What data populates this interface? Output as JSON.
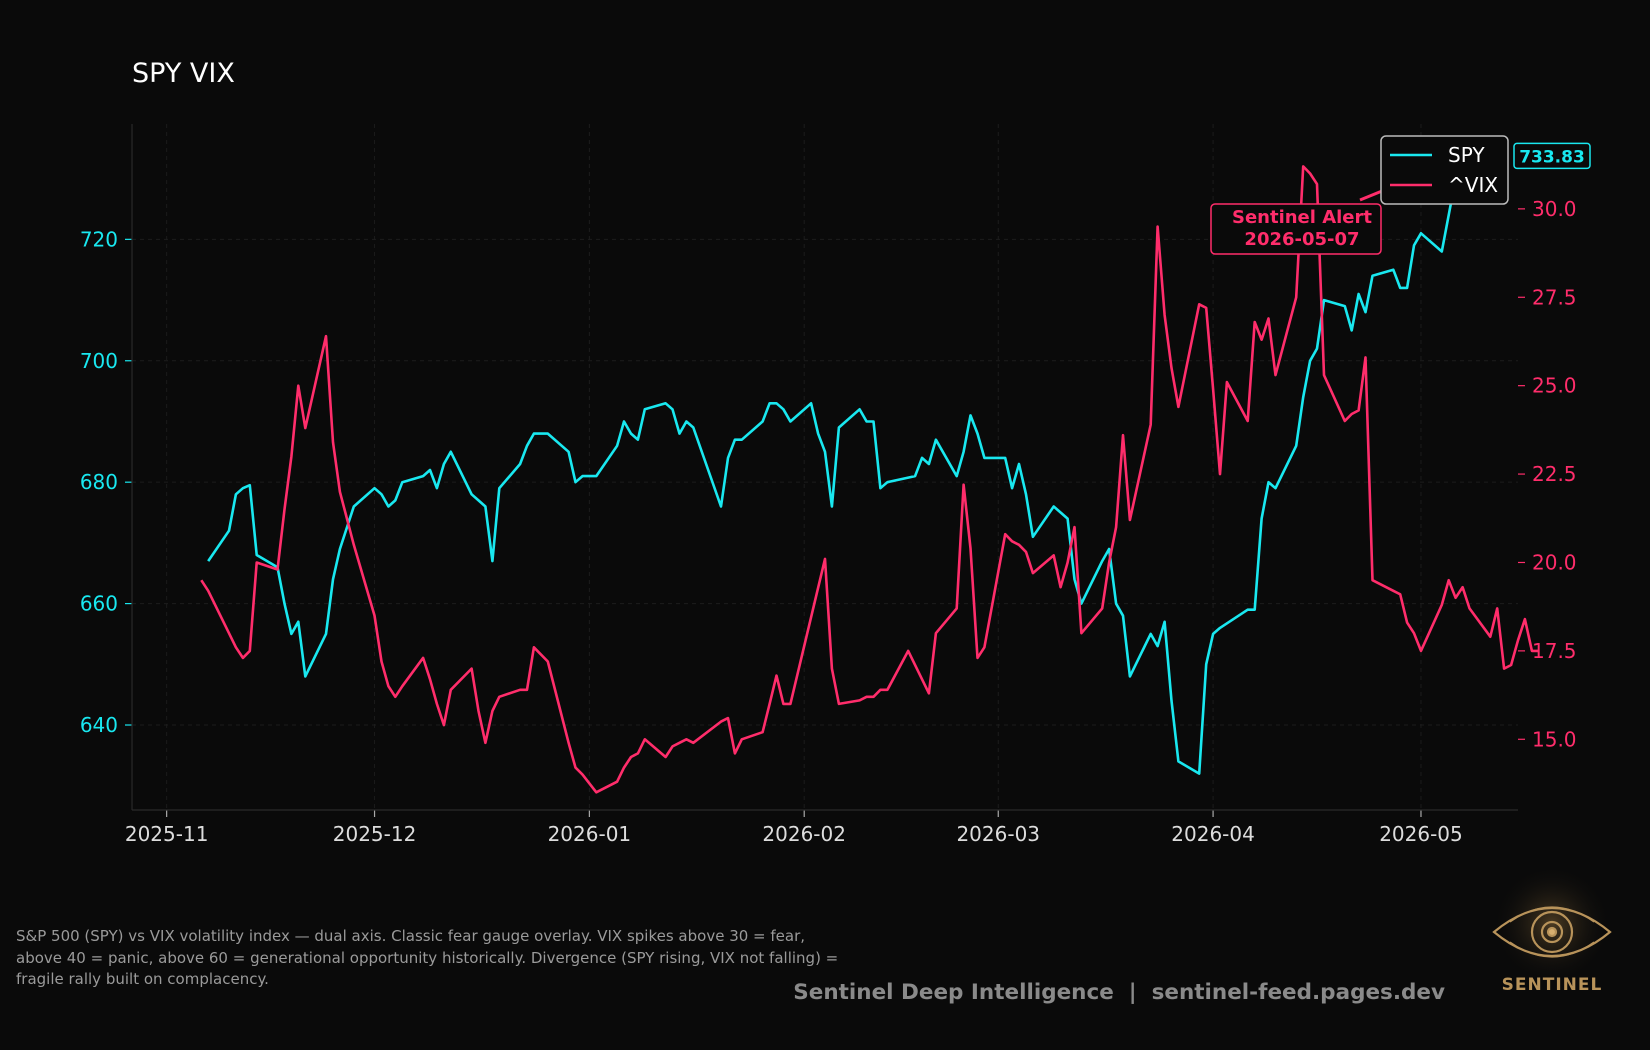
{
  "chart_data": {
    "type": "line",
    "title": "SPY VIX",
    "x_ticks": [
      "2025-11",
      "2025-12",
      "2026-01",
      "2026-02",
      "2026-03",
      "2026-04",
      "2026-05"
    ],
    "y_left": {
      "ticks": [
        640,
        660,
        680,
        700,
        720
      ],
      "range": [
        626,
        739
      ],
      "color": "#19e8f0"
    },
    "y_right": {
      "ticks": [
        "15.0",
        "17.5",
        "20.0",
        "22.5",
        "25.0",
        "27.5",
        "30.0"
      ],
      "range": [
        13.0,
        32.4
      ],
      "color": "#ff2d6b"
    },
    "x_range": [
      "2025-10-27",
      "2026-05-15"
    ],
    "grid": true,
    "legend": {
      "position": "top-right",
      "entries": [
        "SPY",
        "^VIX"
      ]
    },
    "last_value_label": "733.83",
    "annotation": {
      "line1": "Sentinel Alert",
      "line2": "2026-05-07",
      "color": "#ff2d6b"
    },
    "series": [
      {
        "name": "SPY",
        "axis": "left",
        "color": "#19e8f0",
        "points": [
          [
            "2025-11-07",
            667
          ],
          [
            "2025-11-10",
            672
          ],
          [
            "2025-11-11",
            678
          ],
          [
            "2025-11-12",
            679
          ],
          [
            "2025-11-13",
            679.5
          ],
          [
            "2025-11-14",
            668
          ],
          [
            "2025-11-17",
            666
          ],
          [
            "2025-11-18",
            660
          ],
          [
            "2025-11-19",
            655
          ],
          [
            "2025-11-20",
            657
          ],
          [
            "2025-11-21",
            648
          ],
          [
            "2025-11-24",
            655
          ],
          [
            "2025-11-25",
            664
          ],
          [
            "2025-11-26",
            669
          ],
          [
            "2025-11-28",
            676
          ],
          [
            "2025-12-01",
            679
          ],
          [
            "2025-12-02",
            678
          ],
          [
            "2025-12-03",
            676
          ],
          [
            "2025-12-04",
            677
          ],
          [
            "2025-12-05",
            680
          ],
          [
            "2025-12-08",
            681
          ],
          [
            "2025-12-09",
            682
          ],
          [
            "2025-12-10",
            679
          ],
          [
            "2025-12-11",
            683
          ],
          [
            "2025-12-12",
            685
          ],
          [
            "2025-12-15",
            678
          ],
          [
            "2025-12-16",
            677
          ],
          [
            "2025-12-17",
            676
          ],
          [
            "2025-12-18",
            667
          ],
          [
            "2025-12-19",
            679
          ],
          [
            "2025-12-22",
            683
          ],
          [
            "2025-12-23",
            686
          ],
          [
            "2025-12-24",
            688
          ],
          [
            "2025-12-26",
            688
          ],
          [
            "2025-12-29",
            685
          ],
          [
            "2025-12-30",
            680
          ],
          [
            "2025-12-31",
            681
          ],
          [
            "2026-01-02",
            681
          ],
          [
            "2026-01-05",
            686
          ],
          [
            "2026-01-06",
            690
          ],
          [
            "2026-01-07",
            688
          ],
          [
            "2026-01-08",
            687
          ],
          [
            "2026-01-09",
            692
          ],
          [
            "2026-01-12",
            693
          ],
          [
            "2026-01-13",
            692
          ],
          [
            "2026-01-14",
            688
          ],
          [
            "2026-01-15",
            690
          ],
          [
            "2026-01-16",
            689
          ],
          [
            "2026-01-20",
            676
          ],
          [
            "2026-01-21",
            684
          ],
          [
            "2026-01-22",
            687
          ],
          [
            "2026-01-23",
            687
          ],
          [
            "2026-01-26",
            690
          ],
          [
            "2026-01-27",
            693
          ],
          [
            "2026-01-28",
            693
          ],
          [
            "2026-01-29",
            692
          ],
          [
            "2026-01-30",
            690
          ],
          [
            "2026-02-02",
            693
          ],
          [
            "2026-02-03",
            688
          ],
          [
            "2026-02-04",
            685
          ],
          [
            "2026-02-05",
            676
          ],
          [
            "2026-02-06",
            689
          ],
          [
            "2026-02-09",
            692
          ],
          [
            "2026-02-10",
            690
          ],
          [
            "2026-02-11",
            690
          ],
          [
            "2026-02-12",
            679
          ],
          [
            "2026-02-13",
            680
          ],
          [
            "2026-02-17",
            681
          ],
          [
            "2026-02-18",
            684
          ],
          [
            "2026-02-19",
            683
          ],
          [
            "2026-02-20",
            687
          ],
          [
            "2026-02-23",
            681
          ],
          [
            "2026-02-24",
            685
          ],
          [
            "2026-02-25",
            691
          ],
          [
            "2026-02-26",
            688
          ],
          [
            "2026-02-27",
            684
          ],
          [
            "2026-03-02",
            684
          ],
          [
            "2026-03-03",
            679
          ],
          [
            "2026-03-04",
            683
          ],
          [
            "2026-03-05",
            678
          ],
          [
            "2026-03-06",
            671
          ],
          [
            "2026-03-09",
            676
          ],
          [
            "2026-03-10",
            675
          ],
          [
            "2026-03-11",
            674
          ],
          [
            "2026-03-12",
            664
          ],
          [
            "2026-03-13",
            660
          ],
          [
            "2026-03-16",
            667
          ],
          [
            "2026-03-17",
            669
          ],
          [
            "2026-03-18",
            660
          ],
          [
            "2026-03-19",
            658
          ],
          [
            "2026-03-20",
            648
          ],
          [
            "2026-03-23",
            655
          ],
          [
            "2026-03-24",
            653
          ],
          [
            "2026-03-25",
            657
          ],
          [
            "2026-03-26",
            644
          ],
          [
            "2026-03-27",
            634
          ],
          [
            "2026-03-30",
            632
          ],
          [
            "2026-03-31",
            650
          ],
          [
            "2026-04-01",
            655
          ],
          [
            "2026-04-02",
            656
          ],
          [
            "2026-04-06",
            659
          ],
          [
            "2026-04-07",
            659
          ],
          [
            "2026-04-08",
            674
          ],
          [
            "2026-04-09",
            680
          ],
          [
            "2026-04-10",
            679
          ],
          [
            "2026-04-13",
            686
          ],
          [
            "2026-04-14",
            694
          ],
          [
            "2026-04-15",
            700
          ],
          [
            "2026-04-16",
            702
          ],
          [
            "2026-04-17",
            710
          ],
          [
            "2026-04-20",
            709
          ],
          [
            "2026-04-21",
            705
          ],
          [
            "2026-04-22",
            711
          ],
          [
            "2026-04-23",
            708
          ],
          [
            "2026-04-24",
            714
          ],
          [
            "2026-04-27",
            715
          ],
          [
            "2026-04-28",
            712
          ],
          [
            "2026-04-29",
            712
          ],
          [
            "2026-04-30",
            719
          ],
          [
            "2026-05-01",
            721
          ],
          [
            "2026-05-04",
            718
          ],
          [
            "2026-05-05",
            724
          ],
          [
            "2026-05-06",
            730
          ],
          [
            "2026-05-07",
            733.83
          ]
        ]
      },
      {
        "name": "^VIX",
        "axis": "right",
        "color": "#ff2d6b",
        "points": [
          [
            "2025-11-06",
            19.5
          ],
          [
            "2025-11-07",
            19.2
          ],
          [
            "2025-11-10",
            18.0
          ],
          [
            "2025-11-11",
            17.6
          ],
          [
            "2025-11-12",
            17.3
          ],
          [
            "2025-11-13",
            17.5
          ],
          [
            "2025-11-14",
            20.0
          ],
          [
            "2025-11-17",
            19.8
          ],
          [
            "2025-11-18",
            21.5
          ],
          [
            "2025-11-19",
            23.0
          ],
          [
            "2025-11-20",
            25.0
          ],
          [
            "2025-11-21",
            23.8
          ],
          [
            "2025-11-24",
            26.4
          ],
          [
            "2025-11-25",
            23.4
          ],
          [
            "2025-11-26",
            22.0
          ],
          [
            "2025-11-28",
            20.5
          ],
          [
            "2025-12-01",
            18.5
          ],
          [
            "2025-12-02",
            17.2
          ],
          [
            "2025-12-03",
            16.5
          ],
          [
            "2025-12-04",
            16.2
          ],
          [
            "2025-12-05",
            16.5
          ],
          [
            "2025-12-08",
            17.3
          ],
          [
            "2025-12-09",
            16.7
          ],
          [
            "2025-12-10",
            16.0
          ],
          [
            "2025-12-11",
            15.4
          ],
          [
            "2025-12-12",
            16.4
          ],
          [
            "2025-12-15",
            17.0
          ],
          [
            "2025-12-16",
            15.8
          ],
          [
            "2025-12-17",
            14.9
          ],
          [
            "2025-12-18",
            15.8
          ],
          [
            "2025-12-19",
            16.2
          ],
          [
            "2025-12-22",
            16.4
          ],
          [
            "2025-12-23",
            16.4
          ],
          [
            "2025-12-24",
            17.6
          ],
          [
            "2025-12-26",
            17.2
          ],
          [
            "2025-12-29",
            14.9
          ],
          [
            "2025-12-30",
            14.2
          ],
          [
            "2025-12-31",
            14.0
          ],
          [
            "2026-01-02",
            13.5
          ],
          [
            "2026-01-05",
            13.8
          ],
          [
            "2026-01-06",
            14.2
          ],
          [
            "2026-01-07",
            14.5
          ],
          [
            "2026-01-08",
            14.6
          ],
          [
            "2026-01-09",
            15.0
          ],
          [
            "2026-01-12",
            14.5
          ],
          [
            "2026-01-13",
            14.8
          ],
          [
            "2026-01-14",
            14.9
          ],
          [
            "2026-01-15",
            15.0
          ],
          [
            "2026-01-16",
            14.9
          ],
          [
            "2026-01-20",
            15.5
          ],
          [
            "2026-01-21",
            15.6
          ],
          [
            "2026-01-22",
            14.6
          ],
          [
            "2026-01-23",
            15.0
          ],
          [
            "2026-01-26",
            15.2
          ],
          [
            "2026-01-27",
            16.0
          ],
          [
            "2026-01-28",
            16.8
          ],
          [
            "2026-01-29",
            16.0
          ],
          [
            "2026-01-30",
            16.0
          ],
          [
            "2026-02-04",
            20.1
          ],
          [
            "2026-02-05",
            17.0
          ],
          [
            "2026-02-06",
            16.0
          ],
          [
            "2026-02-09",
            16.1
          ],
          [
            "2026-02-10",
            16.2
          ],
          [
            "2026-02-11",
            16.2
          ],
          [
            "2026-02-12",
            16.4
          ],
          [
            "2026-02-13",
            16.4
          ],
          [
            "2026-02-16",
            17.5
          ],
          [
            "2026-02-19",
            16.3
          ],
          [
            "2026-02-20",
            18.0
          ],
          [
            "2026-02-23",
            18.7
          ],
          [
            "2026-02-24",
            22.2
          ],
          [
            "2026-02-25",
            20.4
          ],
          [
            "2026-02-26",
            17.3
          ],
          [
            "2026-02-27",
            17.6
          ],
          [
            "2026-03-02",
            20.8
          ],
          [
            "2026-03-03",
            20.6
          ],
          [
            "2026-03-04",
            20.5
          ],
          [
            "2026-03-05",
            20.3
          ],
          [
            "2026-03-06",
            19.7
          ],
          [
            "2026-03-09",
            20.2
          ],
          [
            "2026-03-10",
            19.3
          ],
          [
            "2026-03-11",
            20.0
          ],
          [
            "2026-03-12",
            21.0
          ],
          [
            "2026-03-13",
            18.0
          ],
          [
            "2026-03-16",
            18.7
          ],
          [
            "2026-03-17",
            20.0
          ],
          [
            "2026-03-18",
            21.0
          ],
          [
            "2026-03-19",
            23.6
          ],
          [
            "2026-03-20",
            21.2
          ],
          [
            "2026-03-23",
            23.9
          ],
          [
            "2026-03-24",
            29.5
          ],
          [
            "2026-03-25",
            27.0
          ],
          [
            "2026-03-26",
            25.5
          ],
          [
            "2026-03-27",
            24.4
          ],
          [
            "2026-03-30",
            27.3
          ],
          [
            "2026-03-31",
            27.2
          ],
          [
            "2026-04-01",
            24.9
          ],
          [
            "2026-04-02",
            22.5
          ],
          [
            "2026-04-03",
            25.1
          ],
          [
            "2026-04-06",
            24.0
          ],
          [
            "2026-04-07",
            26.8
          ],
          [
            "2026-04-08",
            26.3
          ],
          [
            "2026-04-09",
            26.9
          ],
          [
            "2026-04-10",
            25.3
          ],
          [
            "2026-04-13",
            27.5
          ],
          [
            "2026-04-14",
            31.2
          ],
          [
            "2026-04-15",
            31.0
          ],
          [
            "2026-04-16",
            30.7
          ],
          [
            "2026-04-17",
            25.3
          ],
          [
            "2026-04-20",
            24.0
          ],
          [
            "2026-04-21",
            24.2
          ],
          [
            "2026-04-22",
            24.3
          ],
          [
            "2026-04-23",
            25.8
          ],
          [
            "2026-04-24",
            19.5
          ],
          [
            "2026-04-27",
            19.2
          ],
          [
            "2026-04-28",
            19.1
          ],
          [
            "2026-04-29",
            18.3
          ],
          [
            "2026-04-30",
            18.0
          ],
          [
            "2026-05-01",
            17.5
          ],
          [
            "2026-05-04",
            18.8
          ],
          [
            "2026-05-05",
            19.5
          ],
          [
            "2026-05-06",
            19.0
          ],
          [
            "2026-05-07",
            19.3
          ],
          [
            "2026-05-08",
            18.7
          ],
          [
            "2026-05-11",
            17.9
          ],
          [
            "2026-05-12",
            18.7
          ],
          [
            "2026-05-13",
            17.0
          ],
          [
            "2026-05-14",
            17.1
          ],
          [
            "2026-05-15",
            17.8
          ],
          [
            "2026-05-16",
            18.4
          ],
          [
            "2026-05-17",
            17.5
          ],
          [
            "2026-05-18",
            17.5
          ]
        ]
      }
    ]
  },
  "caption": "S&P 500 (SPY) vs VIX volatility index — dual axis. Classic fear gauge overlay. VIX spikes above 30 = fear, above 40 = panic, above 60 = generational opportunity historically. Divergence (SPY rising, VIX not falling) = fragile rally built on complacency.",
  "footer": "Sentinel Deep Intelligence  |  sentinel-feed.pages.dev",
  "logo_text": "SENTINEL"
}
